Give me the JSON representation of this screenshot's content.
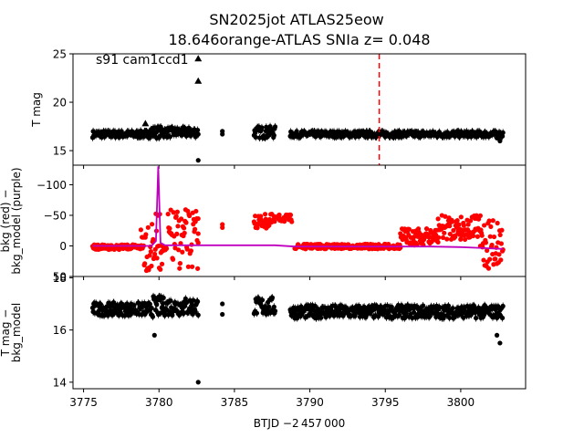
{
  "title_line1": "SN2025jot  ATLAS25eow",
  "title_line2": "18.646orange-ATLAS SNIa z= 0.048",
  "shared_x": {
    "label": "BTJD −2 457 000",
    "ticks": [
      3775,
      3780,
      3785,
      3790,
      3795,
      3800
    ],
    "xlim": [
      3774.3,
      3804.3
    ]
  },
  "chart_data": [
    {
      "type": "scatter",
      "ylabel": "T mag",
      "annotation": "s91 cam1ccd1",
      "ylim": [
        25,
        13.5
      ],
      "yticks": [
        15,
        20,
        25
      ],
      "ytick_labels": [
        "15",
        "20",
        "25"
      ],
      "vline": {
        "x": 3794.6,
        "color": "#ff0000",
        "style": "dashed"
      },
      "series": [
        {
          "color": "#000000",
          "marker": "circle",
          "segments": [
            {
              "x0": 3775.6,
              "x1": 3779.4,
              "y": 16.7,
              "spread": 0.35
            },
            {
              "x0": 3779.4,
              "x1": 3780.3,
              "y": 16.9,
              "spread": 0.6
            },
            {
              "x0": 3780.3,
              "x1": 3782.6,
              "y": 16.9,
              "spread": 0.5
            },
            {
              "x0": 3786.3,
              "x1": 3787.7,
              "y": 16.9,
              "spread": 0.6
            },
            {
              "x0": 3788.7,
              "x1": 3802.8,
              "y": 16.7,
              "spread": 0.3
            }
          ],
          "points": [
            [
              3782.6,
              14.0
            ],
            [
              3784.2,
              16.7
            ],
            [
              3784.2,
              17.0
            ],
            [
              3780.2,
              17.2
            ],
            [
              3802.6,
              16.0
            ],
            [
              3802.4,
              16.3
            ]
          ]
        },
        {
          "color": "#000000",
          "marker": "triangle",
          "points": [
            [
              3779.1,
              17.8
            ],
            [
              3782.6,
              22.2
            ],
            [
              3782.6,
              24.5
            ]
          ]
        }
      ]
    },
    {
      "type": "scatter",
      "ylabel": "bkg (red) −\nbkg_model (purple)",
      "ylim": [
        -132,
        50
      ],
      "yticks": [
        50,
        0,
        -50,
        -100
      ],
      "ytick_labels": [
        "50",
        "0",
        "−50",
        "−100"
      ],
      "series": [
        {
          "color": "#ff0000",
          "marker": "circle",
          "segments": [
            {
              "x0": 3775.6,
              "x1": 3778.8,
              "y": 2,
              "spread": 4
            },
            {
              "x0": 3778.8,
              "x1": 3780.2,
              "y": -5,
              "spread": 48
            },
            {
              "x0": 3780.2,
              "x1": 3780.5,
              "y": 5,
              "spread": 4
            },
            {
              "x0": 3780.6,
              "x1": 3782.6,
              "y": -10,
              "spread": 50
            },
            {
              "x0": 3786.3,
              "x1": 3787.7,
              "y": -40,
              "spread": 12
            },
            {
              "x0": 3787.9,
              "x1": 3788.8,
              "y": -45,
              "spread": 6
            },
            {
              "x0": 3789.0,
              "x1": 3796.0,
              "y": 1,
              "spread": 4
            },
            {
              "x0": 3796.0,
              "x1": 3798.5,
              "y": -15,
              "spread": 14
            },
            {
              "x0": 3798.5,
              "x1": 3801.3,
              "y": -30,
              "spread": 20
            },
            {
              "x0": 3801.3,
              "x1": 3802.8,
              "y": -5,
              "spread": 45
            }
          ],
          "points": [
            [
              3782.6,
              -5
            ],
            [
              3782.6,
              -20
            ],
            [
              3784.2,
              -30
            ],
            [
              3784.2,
              -35
            ]
          ]
        },
        {
          "color": "#bf00bf",
          "marker": "line",
          "line": [
            [
              3775.6,
              0
            ],
            [
              3779.5,
              0
            ],
            [
              3779.8,
              -8
            ],
            [
              3779.95,
              -130
            ],
            [
              3780.1,
              -5
            ],
            [
              3780.4,
              -1
            ],
            [
              3787.7,
              -1
            ],
            [
              3789.0,
              1
            ],
            [
              3795.0,
              1
            ],
            [
              3798.0,
              1
            ],
            [
              3800.0,
              2
            ],
            [
              3801.0,
              3
            ],
            [
              3802.8,
              5
            ]
          ]
        }
      ]
    },
    {
      "type": "scatter",
      "ylabel": "T mag −\nbkg_model",
      "ylim": [
        18.05,
        13.75
      ],
      "yticks": [
        14,
        16,
        18
      ],
      "ytick_labels": [
        "14",
        "16",
        "18"
      ],
      "series": [
        {
          "color": "#000000",
          "marker": "circle",
          "segments": [
            {
              "x0": 3775.6,
              "x1": 3779.4,
              "y": 16.8,
              "spread": 0.25
            },
            {
              "x0": 3779.4,
              "x1": 3780.3,
              "y": 16.9,
              "spread": 0.4
            },
            {
              "x0": 3780.3,
              "x1": 3782.6,
              "y": 16.9,
              "spread": 0.35
            },
            {
              "x0": 3786.3,
              "x1": 3787.7,
              "y": 16.9,
              "spread": 0.35
            },
            {
              "x0": 3788.7,
              "x1": 3802.8,
              "y": 16.7,
              "spread": 0.25
            }
          ],
          "points": [
            [
              3782.6,
              14.0
            ],
            [
              3784.2,
              16.6
            ],
            [
              3784.2,
              17.0
            ],
            [
              3779.7,
              15.8
            ],
            [
              3802.6,
              15.5
            ],
            [
              3802.4,
              15.8
            ]
          ]
        }
      ]
    }
  ]
}
